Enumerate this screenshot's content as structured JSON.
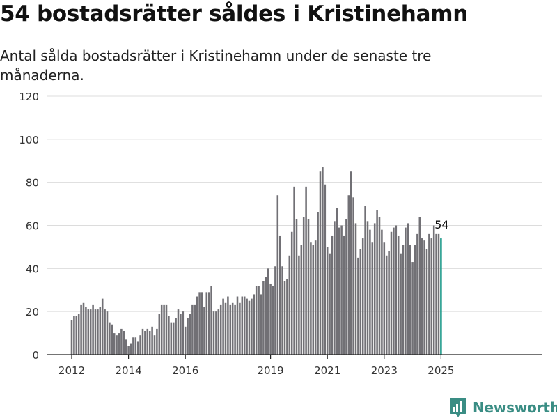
{
  "header": {
    "title": "54 bostadsrätter såldes i Kristinehamn",
    "subtitle": "Antal sålda bostadsrätter i Kristinehamn under de senaste tre månaderna."
  },
  "chart_data": {
    "type": "bar",
    "title": "54 bostadsrätter såldes i Kristinehamn",
    "subtitle": "Antal sålda bostadsrätter i Kristinehamn under de senaste tre månaderna.",
    "ylim": [
      0,
      120
    ],
    "yticks": [
      0,
      20,
      40,
      60,
      80,
      100,
      120
    ],
    "grid": true,
    "x_start": "2012-01",
    "x_labels": [
      {
        "label": "2012",
        "x": "2012-01"
      },
      {
        "label": "2014",
        "x": "2014-01"
      },
      {
        "label": "2016",
        "x": "2016-01"
      },
      {
        "label": "2019",
        "x": "2019-01"
      },
      {
        "label": "2021",
        "x": "2021-01"
      },
      {
        "label": "2023",
        "x": "2023-01"
      },
      {
        "label": "2025",
        "x": "2025-01"
      }
    ],
    "values": [
      16,
      18,
      18,
      19,
      23,
      24,
      22,
      21,
      21,
      23,
      21,
      21,
      22,
      26,
      21,
      20,
      15,
      14,
      10,
      9,
      10,
      12,
      11,
      7,
      4,
      5,
      8,
      8,
      6,
      9,
      12,
      11,
      12,
      11,
      13,
      9,
      12,
      19,
      23,
      23,
      23,
      18,
      15,
      15,
      17,
      21,
      19,
      20,
      13,
      17,
      19,
      23,
      23,
      27,
      29,
      29,
      22,
      29,
      29,
      32,
      20,
      20,
      21,
      23,
      26,
      24,
      27,
      23,
      24,
      23,
      27,
      24,
      27,
      27,
      26,
      25,
      26,
      28,
      32,
      32,
      28,
      34,
      36,
      40,
      33,
      32,
      41,
      74,
      55,
      41,
      34,
      35,
      46,
      57,
      78,
      63,
      46,
      51,
      64,
      78,
      63,
      52,
      51,
      53,
      66,
      85,
      87,
      79,
      50,
      47,
      55,
      62,
      68,
      59,
      60,
      55,
      63,
      74,
      85,
      73,
      61,
      45,
      49,
      54,
      69,
      62,
      58,
      52,
      61,
      67,
      64,
      58,
      52,
      46,
      48,
      57,
      59,
      60,
      55,
      47,
      51,
      59,
      61,
      51,
      43,
      51,
      56,
      64,
      54,
      53,
      49,
      56,
      54,
      60,
      56,
      56,
      54
    ],
    "highlight_last": true,
    "last_label": "54",
    "colors": {
      "bar": "#717075",
      "highlight": "#1d9a8a",
      "grid": "#dcdcdc",
      "axis": "#222222"
    }
  },
  "brand": {
    "name": "Newsworthy",
    "icon": "bar-chart-logo-icon",
    "color": "#3a8d84"
  }
}
